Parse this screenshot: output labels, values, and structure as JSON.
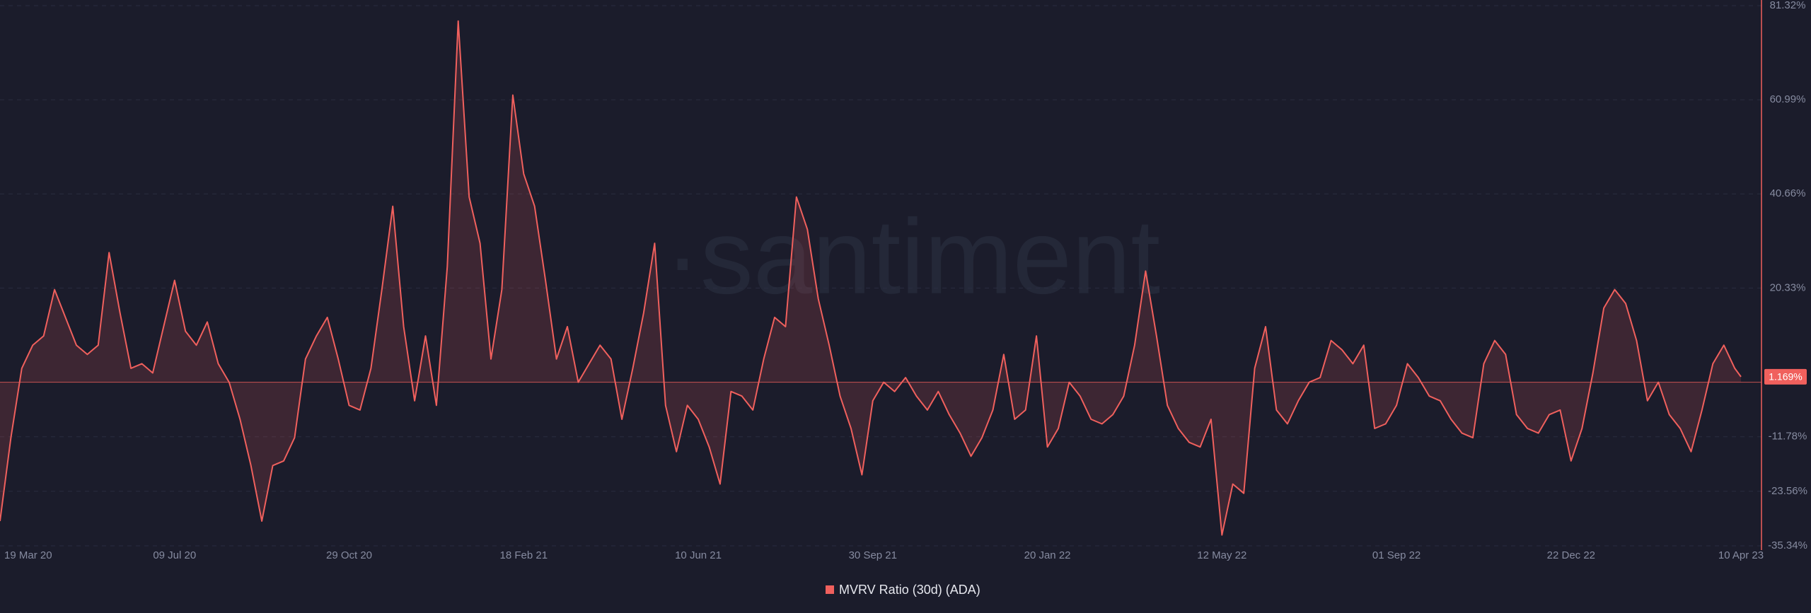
{
  "chart_data": {
    "type": "line",
    "watermark": "·santiment",
    "legend_position": "bottom",
    "grid": true,
    "x": [
      "2020-03-19",
      "2020-03-26",
      "2020-04-02",
      "2020-04-09",
      "2020-04-16",
      "2020-04-23",
      "2020-04-30",
      "2020-05-07",
      "2020-05-14",
      "2020-05-21",
      "2020-05-28",
      "2020-06-04",
      "2020-06-11",
      "2020-06-18",
      "2020-06-25",
      "2020-07-02",
      "2020-07-09",
      "2020-07-16",
      "2020-07-23",
      "2020-07-30",
      "2020-08-06",
      "2020-08-13",
      "2020-08-20",
      "2020-08-27",
      "2020-09-03",
      "2020-09-10",
      "2020-09-17",
      "2020-09-24",
      "2020-10-01",
      "2020-10-08",
      "2020-10-15",
      "2020-10-22",
      "2020-10-29",
      "2020-11-05",
      "2020-11-12",
      "2020-11-19",
      "2020-11-26",
      "2020-12-03",
      "2020-12-10",
      "2020-12-17",
      "2020-12-24",
      "2020-12-31",
      "2021-01-07",
      "2021-01-14",
      "2021-01-21",
      "2021-01-28",
      "2021-02-04",
      "2021-02-11",
      "2021-02-18",
      "2021-02-25",
      "2021-03-04",
      "2021-03-11",
      "2021-03-18",
      "2021-03-25",
      "2021-04-01",
      "2021-04-08",
      "2021-04-15",
      "2021-04-22",
      "2021-04-29",
      "2021-05-06",
      "2021-05-13",
      "2021-05-20",
      "2021-05-27",
      "2021-06-03",
      "2021-06-10",
      "2021-06-17",
      "2021-06-24",
      "2021-07-01",
      "2021-07-08",
      "2021-07-15",
      "2021-07-22",
      "2021-07-29",
      "2021-08-05",
      "2021-08-12",
      "2021-08-19",
      "2021-08-26",
      "2021-09-02",
      "2021-09-09",
      "2021-09-16",
      "2021-09-23",
      "2021-09-30",
      "2021-10-07",
      "2021-10-14",
      "2021-10-21",
      "2021-10-28",
      "2021-11-04",
      "2021-11-11",
      "2021-11-18",
      "2021-11-25",
      "2021-12-02",
      "2021-12-09",
      "2021-12-16",
      "2021-12-23",
      "2021-12-30",
      "2022-01-06",
      "2022-01-13",
      "2022-01-20",
      "2022-01-27",
      "2022-02-03",
      "2022-02-10",
      "2022-02-17",
      "2022-02-24",
      "2022-03-03",
      "2022-03-10",
      "2022-03-17",
      "2022-03-24",
      "2022-03-31",
      "2022-04-07",
      "2022-04-14",
      "2022-04-21",
      "2022-04-28",
      "2022-05-05",
      "2022-05-12",
      "2022-05-19",
      "2022-05-26",
      "2022-06-02",
      "2022-06-09",
      "2022-06-16",
      "2022-06-23",
      "2022-06-30",
      "2022-07-07",
      "2022-07-14",
      "2022-07-21",
      "2022-07-28",
      "2022-08-04",
      "2022-08-11",
      "2022-08-18",
      "2022-08-25",
      "2022-09-01",
      "2022-09-08",
      "2022-09-15",
      "2022-09-22",
      "2022-09-29",
      "2022-10-06",
      "2022-10-13",
      "2022-10-20",
      "2022-10-27",
      "2022-11-03",
      "2022-11-10",
      "2022-11-17",
      "2022-11-24",
      "2022-12-01",
      "2022-12-08",
      "2022-12-15",
      "2022-12-22",
      "2022-12-29",
      "2023-01-05",
      "2023-01-12",
      "2023-01-19",
      "2023-01-26",
      "2023-02-02",
      "2023-02-09",
      "2023-02-16",
      "2023-02-23",
      "2023-03-02",
      "2023-03-09",
      "2023-03-16",
      "2023-03-23",
      "2023-03-30",
      "2023-04-06",
      "2023-04-10"
    ],
    "series": [
      {
        "name": "MVRV Ratio (30d) (ADA)",
        "color": "#f0605d",
        "values": [
          -30,
          -12,
          3,
          8,
          10,
          20,
          14,
          8,
          6,
          8,
          28,
          15,
          3,
          4,
          2,
          12,
          22,
          11,
          8,
          13,
          4,
          0,
          -8,
          -18,
          -30,
          -18,
          -17,
          -12,
          5,
          10,
          14,
          5,
          -5,
          -6,
          3,
          20,
          38,
          12,
          -4,
          10,
          -5,
          25,
          78,
          40,
          30,
          5,
          20,
          62,
          45,
          38,
          22,
          5,
          12,
          0,
          4,
          8,
          5,
          -8,
          3,
          15,
          30,
          -5,
          -15,
          -5,
          -8,
          -14,
          -22,
          -2,
          -3,
          -6,
          5,
          14,
          12,
          40,
          33,
          18,
          8,
          -3,
          -10,
          -20,
          -4,
          0,
          -2,
          1,
          -3,
          -6,
          -2,
          -7,
          -11,
          -16,
          -12,
          -6,
          6,
          -8,
          -6,
          10,
          -14,
          -10,
          0,
          -3,
          -8,
          -9,
          -7,
          -3,
          8,
          24,
          10,
          -5,
          -10,
          -13,
          -14,
          -8,
          -33,
          -22,
          -24,
          3,
          12,
          -6,
          -9,
          -4,
          0,
          1,
          9,
          7,
          4,
          8,
          -10,
          -9,
          -5,
          4,
          1,
          -3,
          -4,
          -8,
          -11,
          -12,
          4,
          9,
          6,
          -7,
          -10,
          -11,
          -7,
          -6,
          -17,
          -10,
          2,
          16,
          20,
          17,
          9,
          -4,
          0,
          -7,
          -10,
          -15,
          -6,
          4,
          8,
          3,
          1.169
        ]
      }
    ],
    "xlim": [
      "2020-03-19",
      "2023-04-10"
    ],
    "xticks": [
      {
        "value": "2020-03-19",
        "label": "19 Mar 20"
      },
      {
        "value": "2020-07-09",
        "label": "09 Jul 20"
      },
      {
        "value": "2020-10-29",
        "label": "29 Oct 20"
      },
      {
        "value": "2021-02-18",
        "label": "18 Feb 21"
      },
      {
        "value": "2021-06-10",
        "label": "10 Jun 21"
      },
      {
        "value": "2021-09-30",
        "label": "30 Sep 21"
      },
      {
        "value": "2022-01-20",
        "label": "20 Jan 22"
      },
      {
        "value": "2022-05-12",
        "label": "12 May 22"
      },
      {
        "value": "2022-09-01",
        "label": "01 Sep 22"
      },
      {
        "value": "2022-12-22",
        "label": "22 Dec 22"
      },
      {
        "value": "2023-04-10",
        "label": "10 Apr 23"
      }
    ],
    "ylim": [
      -35.34,
      81.32
    ],
    "yticks": [
      {
        "value": 81.32,
        "label": "81.32%"
      },
      {
        "value": 60.99,
        "label": "60.99%"
      },
      {
        "value": 40.66,
        "label": "40.66%"
      },
      {
        "value": 20.33,
        "label": "20.33%"
      },
      {
        "value": -11.78,
        "label": "-11.78%"
      },
      {
        "value": -23.56,
        "label": "-23.56%"
      },
      {
        "value": -35.34,
        "label": "-35.34%"
      }
    ],
    "current_value": {
      "value": 1.169,
      "label": "1.169%"
    }
  }
}
